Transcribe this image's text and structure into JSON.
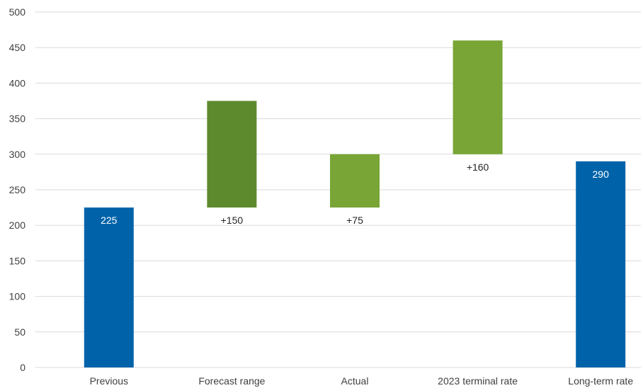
{
  "chart_data": {
    "type": "bar",
    "subtype": "waterfall",
    "title": "",
    "xlabel": "",
    "ylabel": "",
    "ylim": [
      0,
      500
    ],
    "yticks": [
      0,
      50,
      100,
      150,
      200,
      250,
      300,
      350,
      400,
      450,
      500
    ],
    "grid": true,
    "legend": "none",
    "categories": [
      "Previous",
      "Forecast range",
      "Actual",
      "2023 terminal rate",
      "Long-term rate"
    ],
    "bars": [
      {
        "category": "Previous",
        "base": 0,
        "top": 225,
        "label": "225",
        "label_position": "inside-top",
        "color": "#0063AA",
        "label_color": "#ffffff"
      },
      {
        "category": "Forecast range",
        "base": 225,
        "top": 375,
        "label": "+150",
        "label_position": "below",
        "color": "#5E8A2E",
        "label_color": "#262626"
      },
      {
        "category": "Actual",
        "base": 225,
        "top": 300,
        "label": "+75",
        "label_position": "below",
        "color": "#78A535",
        "label_color": "#262626"
      },
      {
        "category": "2023 terminal rate",
        "base": 300,
        "top": 460,
        "label": "+160",
        "label_position": "below",
        "color": "#78A535",
        "label_color": "#262626"
      },
      {
        "category": "Long-term rate",
        "base": 0,
        "top": 290,
        "label": "290",
        "label_position": "inside-top",
        "color": "#0063AA",
        "label_color": "#ffffff"
      }
    ]
  }
}
